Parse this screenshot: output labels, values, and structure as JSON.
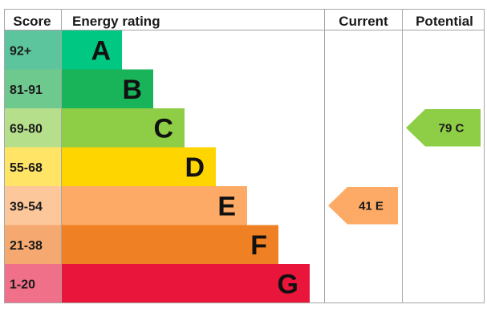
{
  "headers": {
    "score": "Score",
    "rating": "Energy rating",
    "current": "Current",
    "potential": "Potential"
  },
  "chart_data": {
    "type": "bar",
    "bands": [
      {
        "letter": "A",
        "range": "92+",
        "color": "#00c781",
        "score_color": "#5cc59d"
      },
      {
        "letter": "B",
        "range": "81-91",
        "color": "#19b459",
        "score_color": "#6ec98e"
      },
      {
        "letter": "C",
        "range": "69-80",
        "color": "#8dce46",
        "score_color": "#b6df8c"
      },
      {
        "letter": "D",
        "range": "55-68",
        "color": "#ffd500",
        "score_color": "#ffe466"
      },
      {
        "letter": "E",
        "range": "39-54",
        "color": "#fcaa65",
        "score_color": "#fdc79c"
      },
      {
        "letter": "F",
        "range": "21-38",
        "color": "#ef8023",
        "score_color": "#f5a970"
      },
      {
        "letter": "G",
        "range": "1-20",
        "color": "#e9153b",
        "score_color": "#f0708a"
      }
    ],
    "current": {
      "value": 41,
      "band": "E",
      "label": "41  E",
      "color": "#fcaa65"
    },
    "potential": {
      "value": 79,
      "band": "C",
      "label": "79  C",
      "color": "#8dce46"
    }
  }
}
